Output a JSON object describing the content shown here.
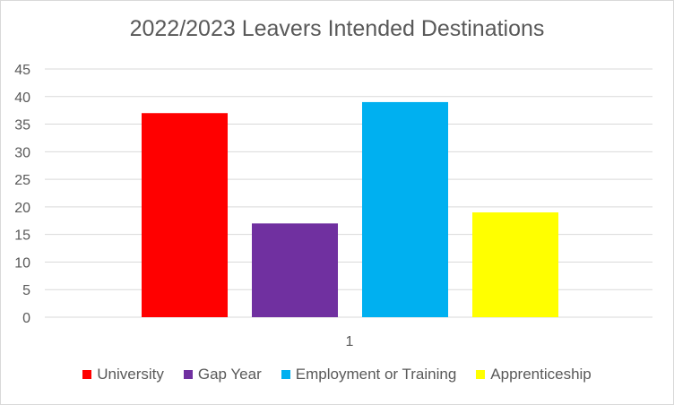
{
  "chart_data": {
    "type": "bar",
    "title": "2022/2023 Leavers Intended Destinations",
    "categories": [
      "1"
    ],
    "series": [
      {
        "name": "University",
        "values": [
          37
        ],
        "color": "#ff0000"
      },
      {
        "name": "Gap Year",
        "values": [
          17
        ],
        "color": "#7030a0"
      },
      {
        "name": "Employment or Training",
        "values": [
          39
        ],
        "color": "#00b0f0"
      },
      {
        "name": "Apprenticeship",
        "values": [
          19
        ],
        "color": "#ffff00"
      }
    ],
    "xlabel": "",
    "ylabel": "",
    "ylim": [
      0,
      45
    ],
    "yticks": [
      "0",
      "5",
      "10",
      "15",
      "20",
      "25",
      "30",
      "35",
      "40",
      "45"
    ],
    "grid": true,
    "legend_position": "bottom"
  }
}
